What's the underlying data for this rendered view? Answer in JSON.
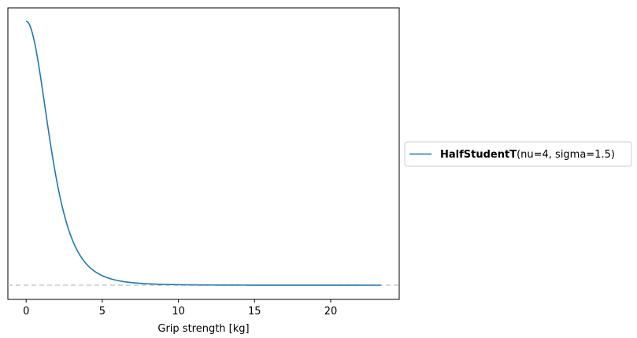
{
  "chart_data": {
    "type": "line",
    "title": "",
    "xlabel": "Grip strength [kg]",
    "ylabel": "",
    "xlim": [
      -1.2,
      24.5
    ],
    "xticks": [
      0,
      5,
      10,
      15,
      20
    ],
    "yticks_visible": false,
    "grid": false,
    "legend_placement": "outside-right",
    "series": [
      {
        "name_bold": "HalfStudentT",
        "name_rest": "(nu=4, sigma=1.5)",
        "color": "#1f77b4",
        "distribution": "HalfStudentT",
        "nu": 4,
        "sigma": 1.5,
        "x_range": [
          0,
          23.3
        ]
      }
    ],
    "baseline": {
      "y": 0,
      "color": "#c8c8c8",
      "style": "dashed"
    }
  }
}
